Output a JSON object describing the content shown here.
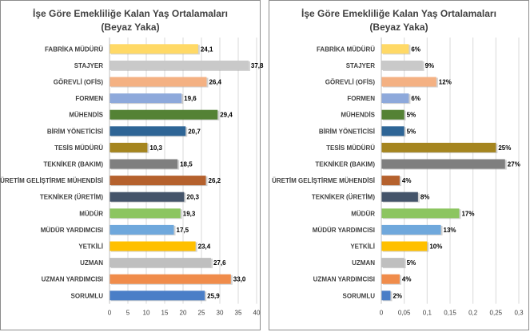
{
  "charts": [
    {
      "title": "İşe Göre Emekliliğe Kalan Yaş Ortalamaları (Beyaz Yaka)",
      "chart_data": {
        "type": "bar",
        "orientation": "horizontal",
        "categories": [
          "FABRİKA MÜDÜRÜ",
          "STAJYER",
          "GÖREVLİ (OFİS)",
          "FORMEN",
          "MÜHENDİS",
          "BİRİM YÖNETİCİSİ",
          "TESİS MÜDÜRÜ",
          "TEKNİKER (BAKIM)",
          "ÜRETİM GELİŞTİRME MÜHENDİSİ",
          "TEKNİKER (ÜRETİM)",
          "MÜDÜR",
          "MÜDÜR YARDIMCISI",
          "YETKİLİ",
          "UZMAN",
          "UZMAN YARDIMCISI",
          "SORUMLU"
        ],
        "values": [
          24.1,
          37.8,
          26.4,
          19.6,
          29.4,
          20.7,
          10.3,
          18.5,
          26.2,
          20.3,
          19.3,
          17.5,
          23.4,
          27.6,
          33.0,
          25.9
        ],
        "value_labels": [
          "24,1",
          "37,8",
          "26,4",
          "19,6",
          "29,4",
          "20,7",
          "10,3",
          "18,5",
          "26,2",
          "20,3",
          "19,3",
          "17,5",
          "23,4",
          "27,6",
          "33,0",
          "25,9"
        ],
        "ticks": [
          "0",
          "5",
          "10",
          "15",
          "20",
          "25",
          "30",
          "35",
          "40"
        ],
        "xlim": [
          0,
          40
        ],
        "grid": true,
        "colors": [
          "#FFD966",
          "#C9C9C9",
          "#F4B183",
          "#8EA9DB",
          "#548235",
          "#2E6596",
          "#A5851F",
          "#7F7F7F",
          "#B5612D",
          "#44546A",
          "#8CC560",
          "#6FA8DC",
          "#FFC000",
          "#BFBFBF",
          "#F08C4B",
          "#4A7EC7"
        ]
      }
    },
    {
      "title": "İşe Göre Emekliliğe Kalan Yaş Ortalamaları (Beyaz Yaka)",
      "chart_data": {
        "type": "bar",
        "orientation": "horizontal",
        "categories": [
          "FABRİKA MÜDÜRÜ",
          "STAJYER",
          "GÖREVLİ (OFİS)",
          "FORMEN",
          "MÜHENDİS",
          "BİRİM YÖNETİCİSİ",
          "TESİS MÜDÜRÜ",
          "TEKNİKER (BAKIM)",
          "ÜRETİM GELİŞTİRME MÜHENDİSİ",
          "TEKNİKER (ÜRETİM)",
          "MÜDÜR",
          "MÜDÜR YARDIMCISI",
          "YETKİLİ",
          "UZMAN",
          "UZMAN YARDIMCISI",
          "SORUMLU"
        ],
        "values": [
          0.06,
          0.09,
          0.12,
          0.06,
          0.05,
          0.05,
          0.25,
          0.27,
          0.04,
          0.08,
          0.17,
          0.13,
          0.1,
          0.05,
          0.04,
          0.02
        ],
        "value_labels": [
          "6%",
          "9%",
          "12%",
          "6%",
          "5%",
          "5%",
          "25%",
          "27%",
          "4%",
          "8%",
          "17%",
          "13%",
          "10%",
          "5%",
          "4%",
          "2%"
        ],
        "ticks": [
          "0",
          "0,05",
          "0,1",
          "0,15",
          "0,2",
          "0,25",
          "0,3"
        ],
        "xlim": [
          0,
          0.3
        ],
        "grid": true,
        "colors": [
          "#FFD966",
          "#C9C9C9",
          "#F4B183",
          "#8EA9DB",
          "#548235",
          "#2E6596",
          "#A5851F",
          "#7F7F7F",
          "#B5612D",
          "#44546A",
          "#8CC560",
          "#6FA8DC",
          "#FFC000",
          "#BFBFBF",
          "#F08C4B",
          "#4A7EC7"
        ]
      }
    }
  ]
}
